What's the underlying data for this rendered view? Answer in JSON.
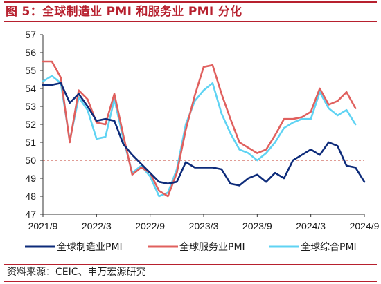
{
  "title": "图 5：全球制造业 PMI 和服务业 PMI 分化",
  "source": "资料来源：CEIC、申万宏源研究",
  "chart_data": {
    "type": "line",
    "x": [
      "2021-09",
      "2021-10",
      "2021-11",
      "2021-12",
      "2022-01",
      "2022-02",
      "2022-03",
      "2022-04",
      "2022-05",
      "2022-06",
      "2022-07",
      "2022-08",
      "2022-09",
      "2022-10",
      "2022-11",
      "2022-12",
      "2023-01",
      "2023-02",
      "2023-03",
      "2023-04",
      "2023-05",
      "2023-06",
      "2023-07",
      "2023-08",
      "2023-09",
      "2023-10",
      "2023-11",
      "2023-12",
      "2024-01",
      "2024-02",
      "2024-03",
      "2024-04",
      "2024-05",
      "2024-06",
      "2024-07",
      "2024-08",
      "2024-09"
    ],
    "xticks": [
      {
        "index": 0,
        "label": "2021/9"
      },
      {
        "index": 6,
        "label": "2022/3"
      },
      {
        "index": 12,
        "label": "2022/9"
      },
      {
        "index": 18,
        "label": "2023/3"
      },
      {
        "index": 24,
        "label": "2023/9"
      },
      {
        "index": 30,
        "label": "2024/3"
      },
      {
        "index": 36,
        "label": "2024/9"
      }
    ],
    "ylim": [
      47,
      57
    ],
    "yticks": [
      47,
      48,
      49,
      50,
      51,
      52,
      53,
      54,
      55,
      56,
      57
    ],
    "reference_line": {
      "y": 50,
      "color": "#c0392b",
      "style": "dashed"
    },
    "legend_position": "bottom",
    "series": [
      {
        "name": "全球制造业PMI",
        "color": "#0d2b7a",
        "values": [
          54.2,
          54.2,
          54.3,
          53.2,
          53.7,
          53.0,
          52.2,
          52.3,
          52.2,
          50.9,
          50.3,
          49.8,
          49.3,
          48.8,
          48.7,
          48.8,
          49.9,
          49.6,
          49.6,
          49.6,
          49.5,
          48.7,
          48.6,
          49.0,
          49.2,
          48.8,
          49.3,
          49.0,
          50.0,
          50.3,
          50.6,
          50.3,
          51.0,
          50.8,
          49.7,
          49.6,
          48.8
        ]
      },
      {
        "name": "全球服务业PMI",
        "color": "#e0605e",
        "values": [
          55.5,
          55.5,
          54.6,
          51.0,
          53.9,
          53.4,
          52.1,
          52.0,
          53.7,
          51.4,
          49.2,
          49.6,
          49.3,
          48.3,
          48.0,
          49.3,
          51.7,
          53.6,
          55.2,
          55.3,
          53.7,
          52.3,
          51.0,
          50.7,
          50.4,
          50.6,
          51.4,
          52.3,
          52.3,
          52.4,
          52.7,
          54.0,
          53.1,
          53.3,
          53.8,
          52.9,
          null
        ]
      },
      {
        "name": "全球综合PMI",
        "color": "#5fd3f3",
        "values": [
          54.4,
          54.7,
          54.3,
          51.1,
          53.5,
          52.8,
          51.2,
          51.3,
          53.4,
          51.2,
          49.3,
          49.7,
          49.1,
          48.0,
          48.2,
          49.5,
          52.0,
          53.3,
          53.9,
          54.3,
          52.6,
          51.5,
          50.6,
          50.4,
          50.0,
          50.4,
          51.0,
          51.8,
          52.1,
          52.3,
          52.3,
          53.8,
          52.9,
          52.5,
          52.8,
          52.0,
          null
        ]
      }
    ]
  }
}
